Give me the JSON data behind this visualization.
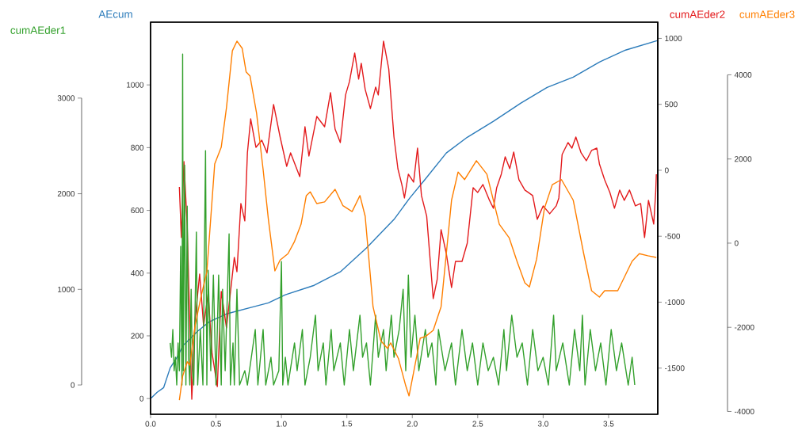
{
  "chart_data": [
    {
      "type": "line",
      "ylabel": "AEcum",
      "y2label": "cumAEder2",
      "xlim": [
        0,
        3.876
      ],
      "xticks": [
        {
          "value": 0,
          "label": "0.0"
        },
        0.5,
        {
          "value": 1,
          "label": "1.0"
        },
        1.5,
        {
          "value": 2,
          "label": "2.0"
        },
        2.5,
        {
          "value": 3,
          "label": "3.0"
        },
        3.5
      ],
      "ylim": [
        -50,
        1200
      ],
      "yticks": [
        0,
        200,
        400,
        600,
        800,
        1000
      ],
      "y2lim": [
        -1850,
        1123
      ],
      "y2ticks": [
        -1500,
        -1000,
        -500,
        0,
        500,
        1000
      ],
      "series": [
        {
          "color": "#2b7bba",
          "x": [
            0,
            0.05,
            0.1,
            0.15,
            0.2,
            0.25,
            0.3,
            0.36,
            0.45,
            0.58,
            0.79,
            0.9,
            1.03,
            1.25,
            1.45,
            1.65,
            1.86,
            1.98,
            2.1,
            2.26,
            2.42,
            2.62,
            2.83,
            3.03,
            3.23,
            3.43,
            3.63,
            3.87
          ],
          "values": [
            0,
            20,
            35,
            98,
            130,
            170,
            190,
            215,
            245,
            270,
            293,
            305,
            331,
            361,
            404,
            480,
            571,
            639,
            700,
            783,
            833,
            884,
            942,
            992,
            1025,
            1073,
            1111,
            1141
          ]
        },
        {
          "axis": "y2",
          "color": "#e31a1c",
          "x": [
            0.22,
            0.235,
            0.255,
            0.28,
            0.315,
            0.34,
            0.375,
            0.405,
            0.44,
            0.47,
            0.51,
            0.54,
            0.58,
            0.64,
            0.66,
            0.69,
            0.72,
            0.74,
            0.765,
            0.805,
            0.85,
            0.89,
            0.94,
            0.99,
            1.04,
            1.07,
            1.14,
            1.18,
            1.21,
            1.27,
            1.33,
            1.375,
            1.41,
            1.45,
            1.49,
            1.52,
            1.56,
            1.59,
            1.61,
            1.64,
            1.68,
            1.72,
            1.74,
            1.78,
            1.82,
            1.86,
            1.89,
            1.92,
            1.94,
            1.97,
            2.01,
            2.04,
            2.07,
            2.11,
            2.16,
            2.19,
            2.22,
            2.26,
            2.3,
            2.33,
            2.38,
            2.42,
            2.465,
            2.5,
            2.54,
            2.59,
            2.62,
            2.645,
            2.68,
            2.71,
            2.745,
            2.775,
            2.815,
            2.86,
            2.92,
            2.955,
            3.0,
            3.05,
            3.1,
            3.12,
            3.145,
            3.19,
            3.22,
            3.25,
            3.29,
            3.33,
            3.37,
            3.41,
            3.43,
            3.47,
            3.51,
            3.545,
            3.585,
            3.62,
            3.66,
            3.705,
            3.745,
            3.775,
            3.805,
            3.845,
            3.86,
            3.865
          ],
          "values": [
            -126,
            -510,
            66,
            -426,
            -1736,
            -1135,
            -787,
            -1177,
            -937,
            -1387,
            -1640,
            -919,
            -1195,
            -660,
            -769,
            -252,
            -384,
            132,
            390,
            174,
            228,
            132,
            499,
            252,
            30,
            132,
            -48,
            330,
            108,
            408,
            330,
            589,
            312,
            210,
            571,
            673,
            889,
            691,
            811,
            613,
            468,
            631,
            571,
            979,
            769,
            252,
            12,
            -108,
            -210,
            -30,
            -90,
            168,
            -192,
            -348,
            -973,
            -829,
            -450,
            -631,
            -889,
            -691,
            -691,
            -553,
            -132,
            -168,
            -108,
            -228,
            -288,
            -132,
            -30,
            102,
            12,
            138,
            -72,
            -150,
            -192,
            -372,
            -270,
            -330,
            -270,
            -210,
            120,
            210,
            168,
            252,
            132,
            72,
            150,
            168,
            48,
            -72,
            -168,
            -288,
            -150,
            -228,
            -150,
            -270,
            -252,
            -510,
            -228,
            -408,
            -168,
            -30
          ]
        }
      ]
    },
    {
      "type": "line",
      "ylabel": "cumAEder1",
      "y2label": "cumAEder3",
      "tick_labels": "y",
      "xlim": [
        0,
        3.876
      ],
      "ylim": [
        -306,
        3794
      ],
      "yticks": [
        0,
        1000,
        2000,
        3000
      ],
      "y2lim": [
        -4066,
        5251
      ],
      "y2ticks": [
        -4000,
        -2000,
        0,
        2000,
        4000
      ],
      "series": [
        {
          "color": "#33a02c",
          "x": [
            0.15,
            0.16,
            0.17,
            0.18,
            0.19,
            0.2,
            0.21,
            0.22,
            0.23,
            0.24,
            0.245,
            0.25,
            0.26,
            0.27,
            0.28,
            0.29,
            0.3,
            0.31,
            0.32,
            0.33,
            0.35,
            0.36,
            0.38,
            0.4,
            0.42,
            0.43,
            0.44,
            0.46,
            0.48,
            0.5,
            0.52,
            0.54,
            0.55,
            0.57,
            0.6,
            0.61,
            0.63,
            0.64,
            0.66,
            0.68,
            0.72,
            0.74,
            0.8,
            0.82,
            0.86,
            0.88,
            0.92,
            0.94,
            0.98,
            1.0,
            1.01,
            1.03,
            1.05,
            1.1,
            1.12,
            1.16,
            1.18,
            1.22,
            1.26,
            1.28,
            1.32,
            1.34,
            1.38,
            1.4,
            1.45,
            1.48,
            1.52,
            1.55,
            1.6,
            1.62,
            1.65,
            1.68,
            1.72,
            1.74,
            1.78,
            1.8,
            1.84,
            1.86,
            1.9,
            1.93,
            1.95,
            1.97,
            1.99,
            2.02,
            2.05,
            2.1,
            2.12,
            2.15,
            2.18,
            2.2,
            2.25,
            2.3,
            2.33,
            2.38,
            2.42,
            2.46,
            2.5,
            2.54,
            2.58,
            2.62,
            2.66,
            2.7,
            2.72,
            2.76,
            2.8,
            2.84,
            2.88,
            2.92,
            2.96,
            3.0,
            3.04,
            3.08,
            3.1,
            3.15,
            3.2,
            3.24,
            3.28,
            3.3,
            3.32,
            3.36,
            3.4,
            3.44,
            3.48,
            3.52,
            3.56,
            3.6,
            3.65,
            3.68,
            3.7
          ],
          "values": [
            440,
            290,
            580,
            150,
            290,
            0,
            440,
            150,
            1450,
            0,
            3460,
            150,
            2300,
            0,
            1870,
            290,
            0,
            1000,
            150,
            0,
            1600,
            0,
            580,
            0,
            2450,
            0,
            1200,
            150,
            1150,
            0,
            1150,
            0,
            1000,
            150,
            1580,
            0,
            440,
            0,
            1000,
            0,
            150,
            0,
            580,
            0,
            580,
            0,
            290,
            0,
            150,
            1290,
            0,
            290,
            0,
            440,
            150,
            580,
            0,
            290,
            730,
            150,
            440,
            0,
            580,
            150,
            440,
            0,
            580,
            150,
            730,
            290,
            440,
            0,
            730,
            290,
            580,
            150,
            730,
            290,
            580,
            1000,
            150,
            1150,
            290,
            730,
            150,
            580,
            290,
            440,
            0,
            580,
            150,
            440,
            0,
            580,
            150,
            440,
            0,
            440,
            150,
            290,
            0,
            580,
            150,
            730,
            290,
            440,
            0,
            580,
            150,
            290,
            0,
            730,
            150,
            440,
            0,
            580,
            150,
            730,
            0,
            580,
            150,
            440,
            0,
            580,
            150,
            440,
            0,
            290,
            0
          ]
        },
        {
          "axis": "y2",
          "color": "#ff7f00",
          "x": [
            0.22,
            0.245,
            0.28,
            0.3,
            0.34,
            0.385,
            0.43,
            0.49,
            0.54,
            0.58,
            0.625,
            0.66,
            0.7,
            0.73,
            0.76,
            0.81,
            0.86,
            0.9,
            0.95,
            0.99,
            1.05,
            1.1,
            1.15,
            1.19,
            1.22,
            1.27,
            1.33,
            1.41,
            1.47,
            1.54,
            1.6,
            1.64,
            1.7,
            1.76,
            1.81,
            1.835,
            1.895,
            1.95,
            1.975,
            2.01,
            2.06,
            2.1,
            2.16,
            2.22,
            2.26,
            2.3,
            2.35,
            2.4,
            2.49,
            2.57,
            2.665,
            2.74,
            2.8,
            2.86,
            2.895,
            2.95,
            3.01,
            3.07,
            3.14,
            3.23,
            3.31,
            3.37,
            3.43,
            3.47,
            3.57,
            3.63,
            3.68,
            3.735,
            3.8,
            3.865
          ],
          "values": [
            -3730,
            -3160,
            -2820,
            -2900,
            -1960,
            -1280,
            -680,
            1880,
            2280,
            3220,
            4570,
            4800,
            4630,
            4070,
            3970,
            3090,
            1750,
            570,
            -660,
            -400,
            -250,
            40,
            450,
            1130,
            1220,
            940,
            980,
            1280,
            890,
            750,
            1130,
            640,
            -1510,
            -2320,
            -2500,
            -2370,
            -2750,
            -3390,
            -3630,
            -3070,
            -2260,
            -2220,
            -2070,
            -1510,
            -250,
            1020,
            1690,
            1510,
            1960,
            1640,
            450,
            130,
            -430,
            -940,
            -1040,
            -380,
            830,
            1390,
            1510,
            1020,
            -250,
            -1130,
            -1280,
            -1130,
            -1130,
            -750,
            -430,
            -250,
            -300,
            -340
          ]
        }
      ]
    }
  ]
}
